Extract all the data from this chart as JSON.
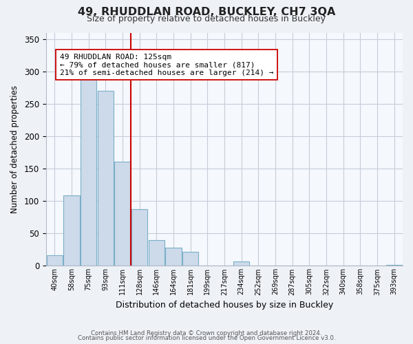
{
  "title": "49, RHUDDLAN ROAD, BUCKLEY, CH7 3QA",
  "subtitle": "Size of property relative to detached houses in Buckley",
  "xlabel": "Distribution of detached houses by size in Buckley",
  "ylabel": "Number of detached properties",
  "bar_labels": [
    "40sqm",
    "58sqm",
    "75sqm",
    "93sqm",
    "111sqm",
    "128sqm",
    "146sqm",
    "164sqm",
    "181sqm",
    "199sqm",
    "217sqm",
    "234sqm",
    "252sqm",
    "269sqm",
    "287sqm",
    "305sqm",
    "322sqm",
    "340sqm",
    "358sqm",
    "375sqm",
    "393sqm"
  ],
  "bar_values": [
    16,
    109,
    291,
    270,
    161,
    87,
    40,
    28,
    22,
    0,
    0,
    7,
    0,
    0,
    0,
    0,
    0,
    0,
    0,
    0,
    2
  ],
  "bar_color": "#ccdaea",
  "bar_edge_color": "#7aafc8",
  "vline_x_index": 4.5,
  "vline_color": "#cc0000",
  "annotation_title": "49 RHUDDLAN ROAD: 125sqm",
  "annotation_line1": "← 79% of detached houses are smaller (817)",
  "annotation_line2": "21% of semi-detached houses are larger (214) →",
  "annotation_box_color": "#ffffff",
  "annotation_box_edge": "#cc0000",
  "ylim": [
    0,
    360
  ],
  "yticks": [
    0,
    50,
    100,
    150,
    200,
    250,
    300,
    350
  ],
  "footer1": "Contains HM Land Registry data © Crown copyright and database right 2024.",
  "footer2": "Contains public sector information licensed under the Open Government Licence v3.0.",
  "bg_color": "#eef2f7",
  "plot_bg_color": "#f5f8fc",
  "grid_color": "#c5cdd8"
}
